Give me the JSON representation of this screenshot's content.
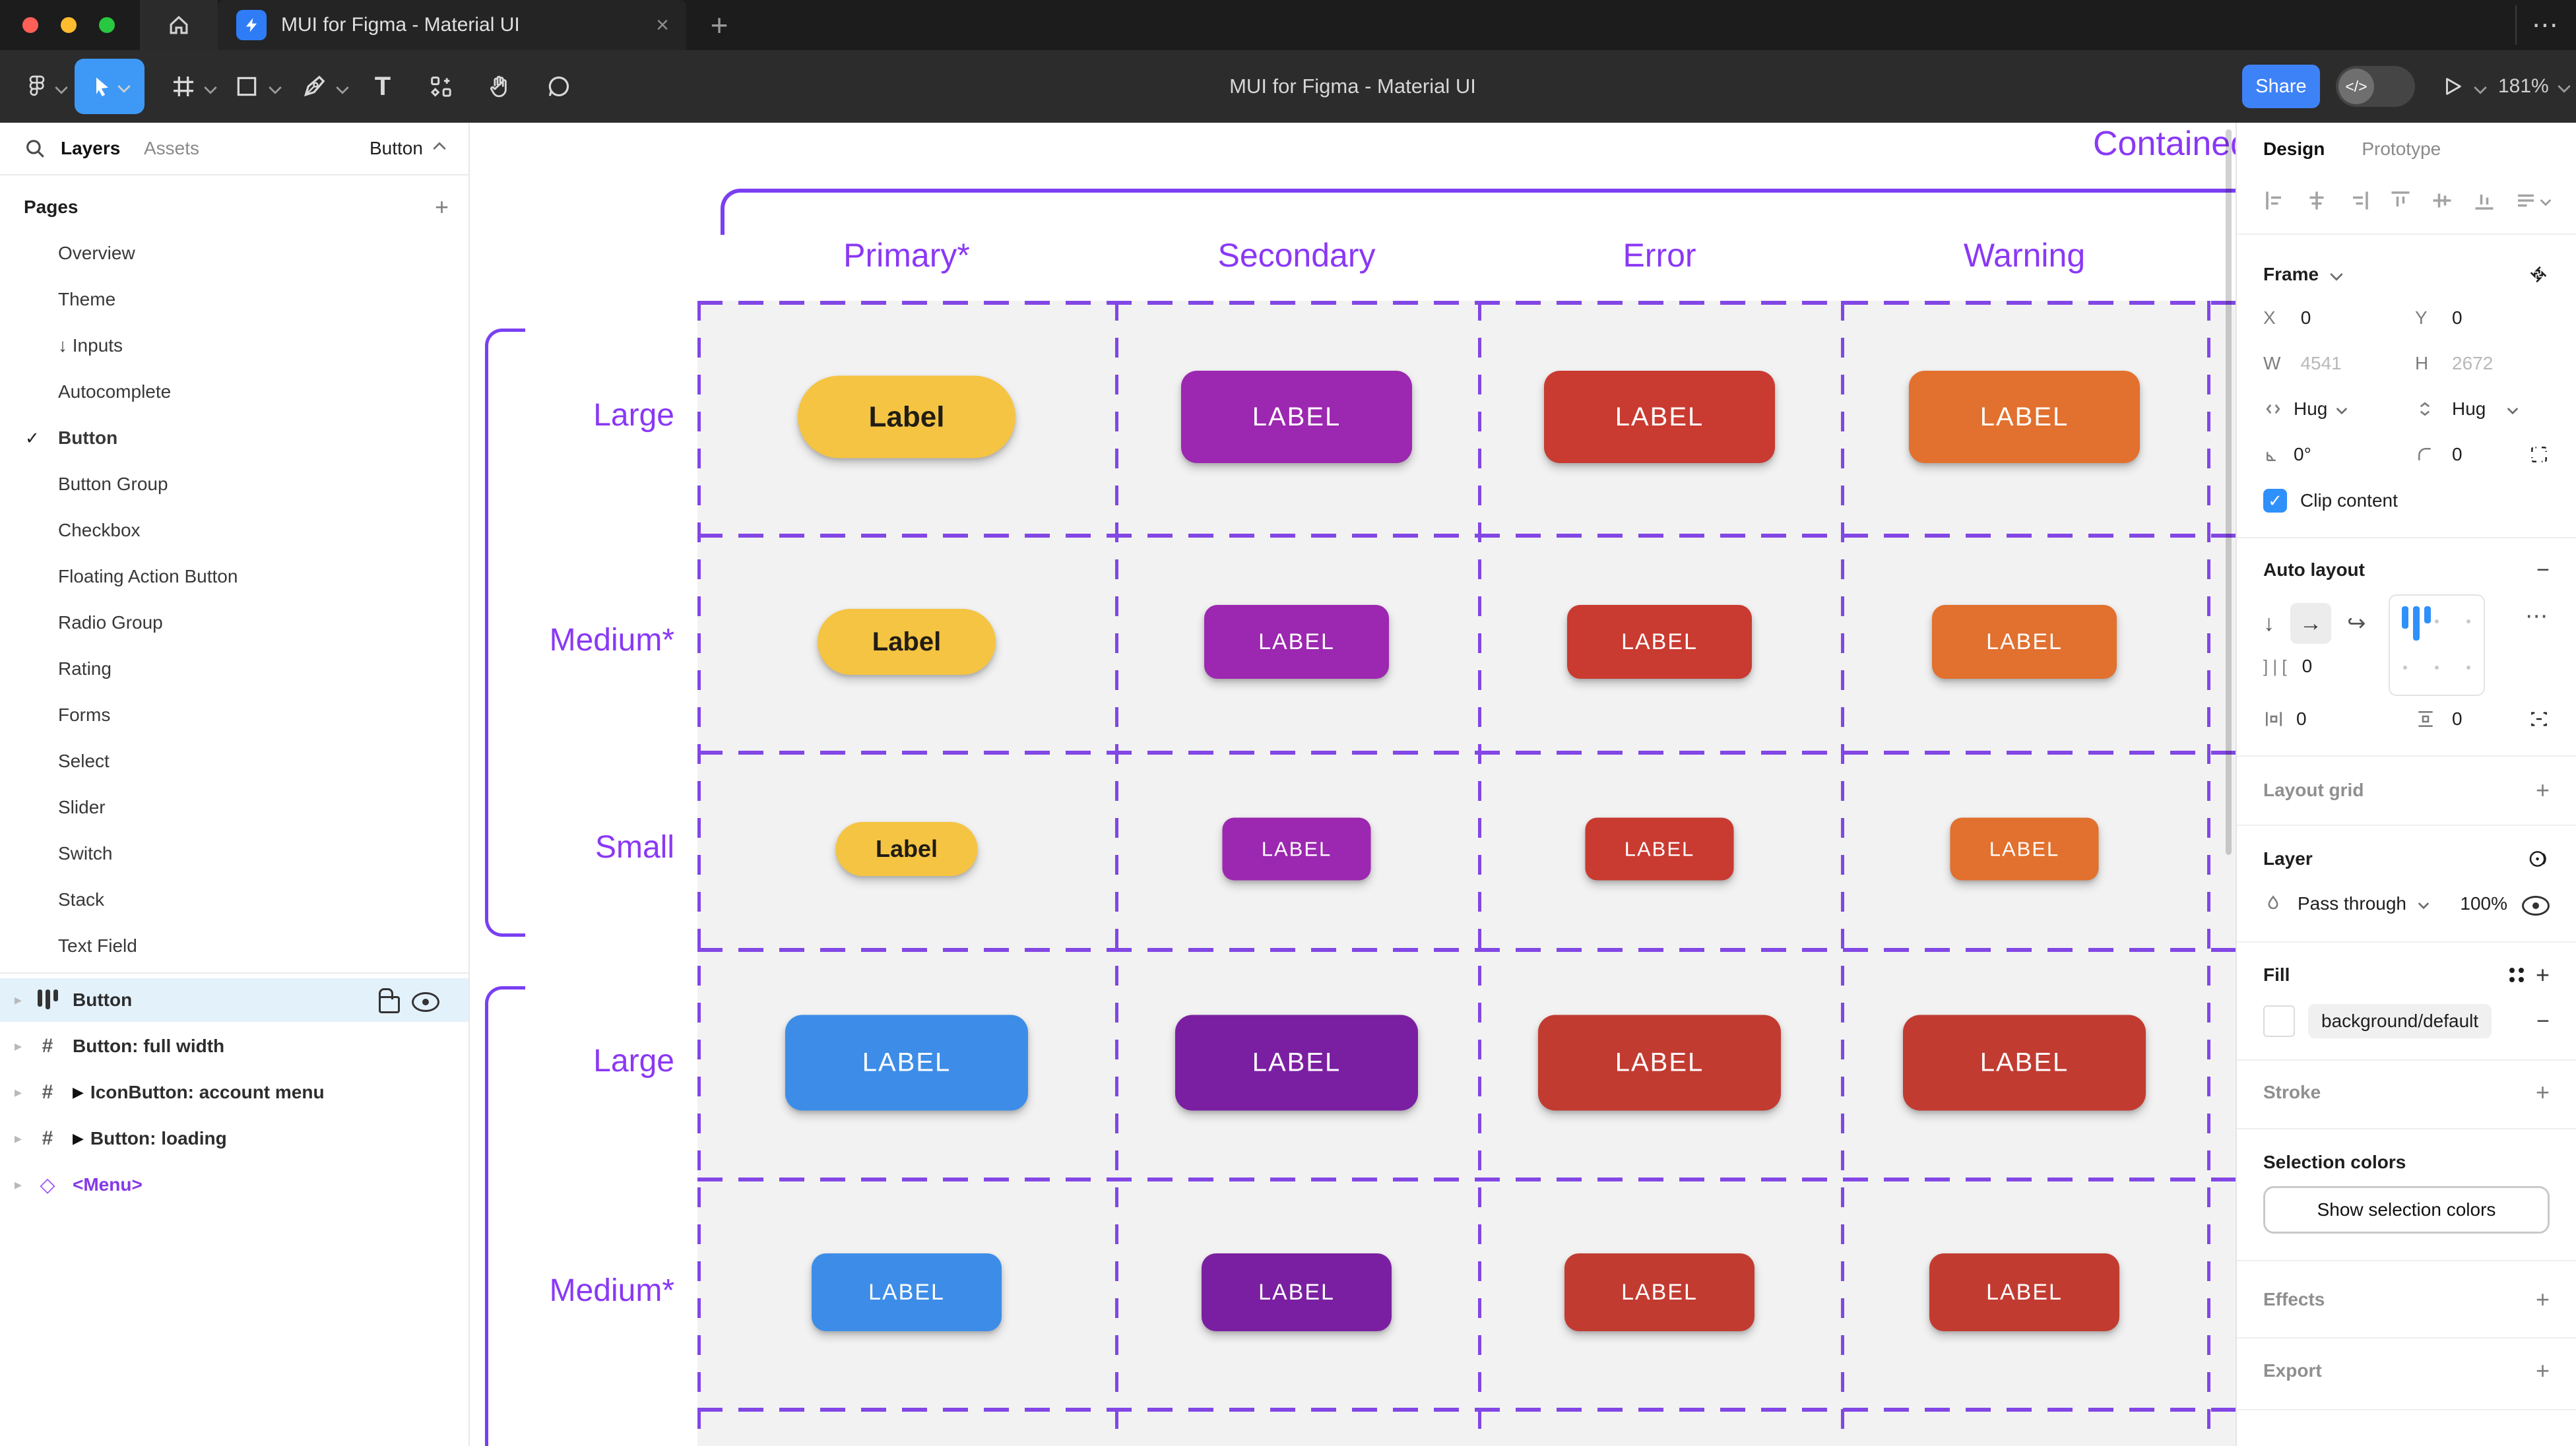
{
  "window": {
    "tab_title": "MUI for Figma - Material UI",
    "close_glyph": "×",
    "new_tab_glyph": "+",
    "overflow_glyph": "⋯",
    "traffic_lights": [
      "#ff5f57",
      "#febc2e",
      "#28c840"
    ]
  },
  "toolbar": {
    "title": "MUI for Figma - Material UI",
    "share_label": "Share",
    "dev_toggle_glyph": "</>",
    "zoom_level": "181%"
  },
  "sidebar": {
    "tabs": {
      "layers": "Layers",
      "assets": "Assets"
    },
    "page_selector": "Button",
    "pages_header": "Pages",
    "pages": [
      {
        "label": "Overview"
      },
      {
        "label": "Theme"
      },
      {
        "label": "Inputs",
        "prefix": "↓ "
      },
      {
        "label": "Autocomplete"
      },
      {
        "label": "Button",
        "checked": true
      },
      {
        "label": "Button Group"
      },
      {
        "label": "Checkbox"
      },
      {
        "label": "Floating Action Button"
      },
      {
        "label": "Radio Group"
      },
      {
        "label": "Rating"
      },
      {
        "label": "Forms"
      },
      {
        "label": "Select"
      },
      {
        "label": "Slider"
      },
      {
        "label": "Switch"
      },
      {
        "label": "Stack"
      },
      {
        "label": "Text Field"
      }
    ],
    "layers": [
      {
        "label": "Button",
        "icon": "auto-layout",
        "selected": true
      },
      {
        "label": "Button: full width",
        "icon": "frame"
      },
      {
        "label": "IconButton: account menu",
        "icon": "frame",
        "marker": "▶"
      },
      {
        "label": "Button: loading",
        "icon": "frame",
        "marker": "▶"
      },
      {
        "label": "<Menu>",
        "icon": "component",
        "purple": true
      }
    ]
  },
  "canvas": {
    "section_title": "Contained",
    "columns": [
      "Primary*",
      "Secondary",
      "Error",
      "Warning"
    ],
    "rows": [
      {
        "label": "Large",
        "cells": [
          {
            "text": "Label",
            "bg": "#f5c442",
            "fg": "#211d15",
            "cls": "pill-lg"
          },
          {
            "text": "LABEL",
            "bg": "#9c27b0",
            "fg": "#ffffff",
            "cls": "rect-lg"
          },
          {
            "text": "LABEL",
            "bg": "#c93a31",
            "fg": "#ffffff",
            "cls": "rect-lg"
          },
          {
            "text": "LABEL",
            "bg": "#e2702e",
            "fg": "#ffffff",
            "cls": "rect-lg"
          }
        ]
      },
      {
        "label": "Medium*",
        "cells": [
          {
            "text": "Label",
            "bg": "#f5c442",
            "fg": "#211d15",
            "cls": "pill-md"
          },
          {
            "text": "LABEL",
            "bg": "#9c27b0",
            "fg": "#ffffff",
            "cls": "rect-md"
          },
          {
            "text": "LABEL",
            "bg": "#c93a31",
            "fg": "#ffffff",
            "cls": "rect-md"
          },
          {
            "text": "LABEL",
            "bg": "#e2702e",
            "fg": "#ffffff",
            "cls": "rect-md"
          }
        ]
      },
      {
        "label": "Small",
        "cells": [
          {
            "text": "Label",
            "bg": "#f5c442",
            "fg": "#211d15",
            "cls": "pill-sm"
          },
          {
            "text": "LABEL",
            "bg": "#9c27b0",
            "fg": "#ffffff",
            "cls": "rect-sm"
          },
          {
            "text": "LABEL",
            "bg": "#c93a31",
            "fg": "#ffffff",
            "cls": "rect-sm"
          },
          {
            "text": "LABEL",
            "bg": "#e2702e",
            "fg": "#ffffff",
            "cls": "rect-sm"
          }
        ]
      },
      {
        "label": "Large",
        "cells": [
          {
            "text": "LABEL",
            "bg": "#3d8de8",
            "fg": "#ffffff",
            "cls": "rect-lg2"
          },
          {
            "text": "LABEL",
            "bg": "#7b1fa2",
            "fg": "#ffffff",
            "cls": "rect-lg2"
          },
          {
            "text": "LABEL",
            "bg": "#c23b31",
            "fg": "#ffffff",
            "cls": "rect-lg2"
          },
          {
            "text": "LABEL",
            "bg": "#c23b31",
            "fg": "#ffffff",
            "cls": "rect-lg2"
          }
        ]
      },
      {
        "label": "Medium*",
        "cells": [
          {
            "text": "LABEL",
            "bg": "#3d8de8",
            "fg": "#ffffff",
            "cls": "rect-md2"
          },
          {
            "text": "LABEL",
            "bg": "#7b1fa2",
            "fg": "#ffffff",
            "cls": "rect-md2"
          },
          {
            "text": "LABEL",
            "bg": "#c23b31",
            "fg": "#ffffff",
            "cls": "rect-md2"
          },
          {
            "text": "LABEL",
            "bg": "#c23b31",
            "fg": "#ffffff",
            "cls": "rect-md2"
          }
        ]
      }
    ],
    "accent_purple": "#8a38f5"
  },
  "inspector": {
    "tabs": {
      "design": "Design",
      "prototype": "Prototype"
    },
    "frame": {
      "header": "Frame",
      "x_label": "X",
      "x": "0",
      "y_label": "Y",
      "y": "0",
      "w_label": "W",
      "w": "4541",
      "h_label": "H",
      "h": "2672",
      "hug_h": "Hug",
      "hug_v": "Hug",
      "rotation": "0°",
      "radius": "0",
      "clip_label": "Clip content"
    },
    "auto_layout": {
      "header": "Auto layout",
      "down_glyph": "↓",
      "right_glyph": "→",
      "gap": "0",
      "padding_h": "0",
      "padding_v": "0",
      "more_glyph": "⋯"
    },
    "layout_grid_header": "Layout grid",
    "layer": {
      "header": "Layer",
      "blend_mode": "Pass through",
      "opacity": "100%"
    },
    "fill": {
      "header": "Fill",
      "token": "background/default"
    },
    "stroke_header": "Stroke",
    "selection_colors": {
      "header": "Selection colors",
      "button_label": "Show selection colors"
    },
    "effects_header": "Effects",
    "export_header": "Export"
  }
}
